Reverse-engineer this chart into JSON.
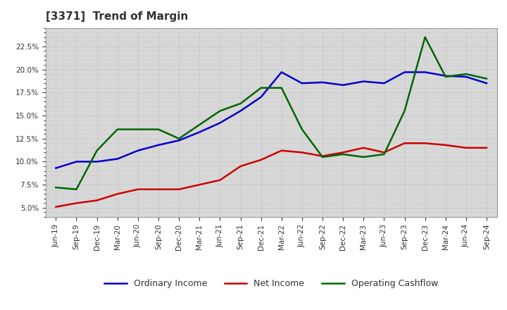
{
  "title": "[3371]  Trend of Margin",
  "x_labels": [
    "Jun-19",
    "Sep-19",
    "Dec-19",
    "Mar-20",
    "Jun-20",
    "Sep-20",
    "Dec-20",
    "Mar-21",
    "Jun-21",
    "Sep-21",
    "Dec-21",
    "Mar-22",
    "Jun-22",
    "Sep-22",
    "Dec-22",
    "Mar-23",
    "Jun-23",
    "Sep-23",
    "Dec-23",
    "Mar-24",
    "Jun-24",
    "Sep-24"
  ],
  "ordinary_income": [
    9.3,
    10.0,
    10.0,
    10.3,
    11.2,
    11.8,
    12.3,
    13.2,
    14.2,
    15.5,
    17.0,
    19.7,
    18.5,
    18.6,
    18.3,
    18.7,
    18.5,
    19.7,
    19.7,
    19.3,
    19.2,
    18.5
  ],
  "net_income": [
    5.1,
    5.5,
    5.8,
    6.5,
    7.0,
    7.0,
    7.0,
    7.5,
    8.0,
    9.5,
    10.2,
    11.2,
    11.0,
    10.6,
    11.0,
    11.5,
    11.0,
    12.0,
    12.0,
    11.8,
    11.5,
    11.5
  ],
  "operating_cashflow": [
    7.2,
    7.0,
    11.2,
    13.5,
    13.5,
    13.5,
    12.5,
    14.0,
    15.5,
    16.3,
    18.0,
    18.0,
    13.5,
    10.5,
    10.8,
    10.5,
    10.8,
    15.5,
    23.5,
    19.2,
    19.5,
    19.0
  ],
  "ylim": [
    4.0,
    24.5
  ],
  "yticks": [
    5.0,
    7.5,
    10.0,
    12.5,
    15.0,
    17.5,
    20.0,
    22.5
  ],
  "line_colors": {
    "ordinary_income": "#0000cc",
    "net_income": "#cc0000",
    "operating_cashflow": "#006600"
  },
  "line_width": 1.8,
  "bg_color": "#ffffff",
  "plot_bg_color": "#d8d8d8",
  "grid_color": "#aaaaaa",
  "title_color": "#333333",
  "legend_labels": [
    "Ordinary Income",
    "Net Income",
    "Operating Cashflow"
  ]
}
